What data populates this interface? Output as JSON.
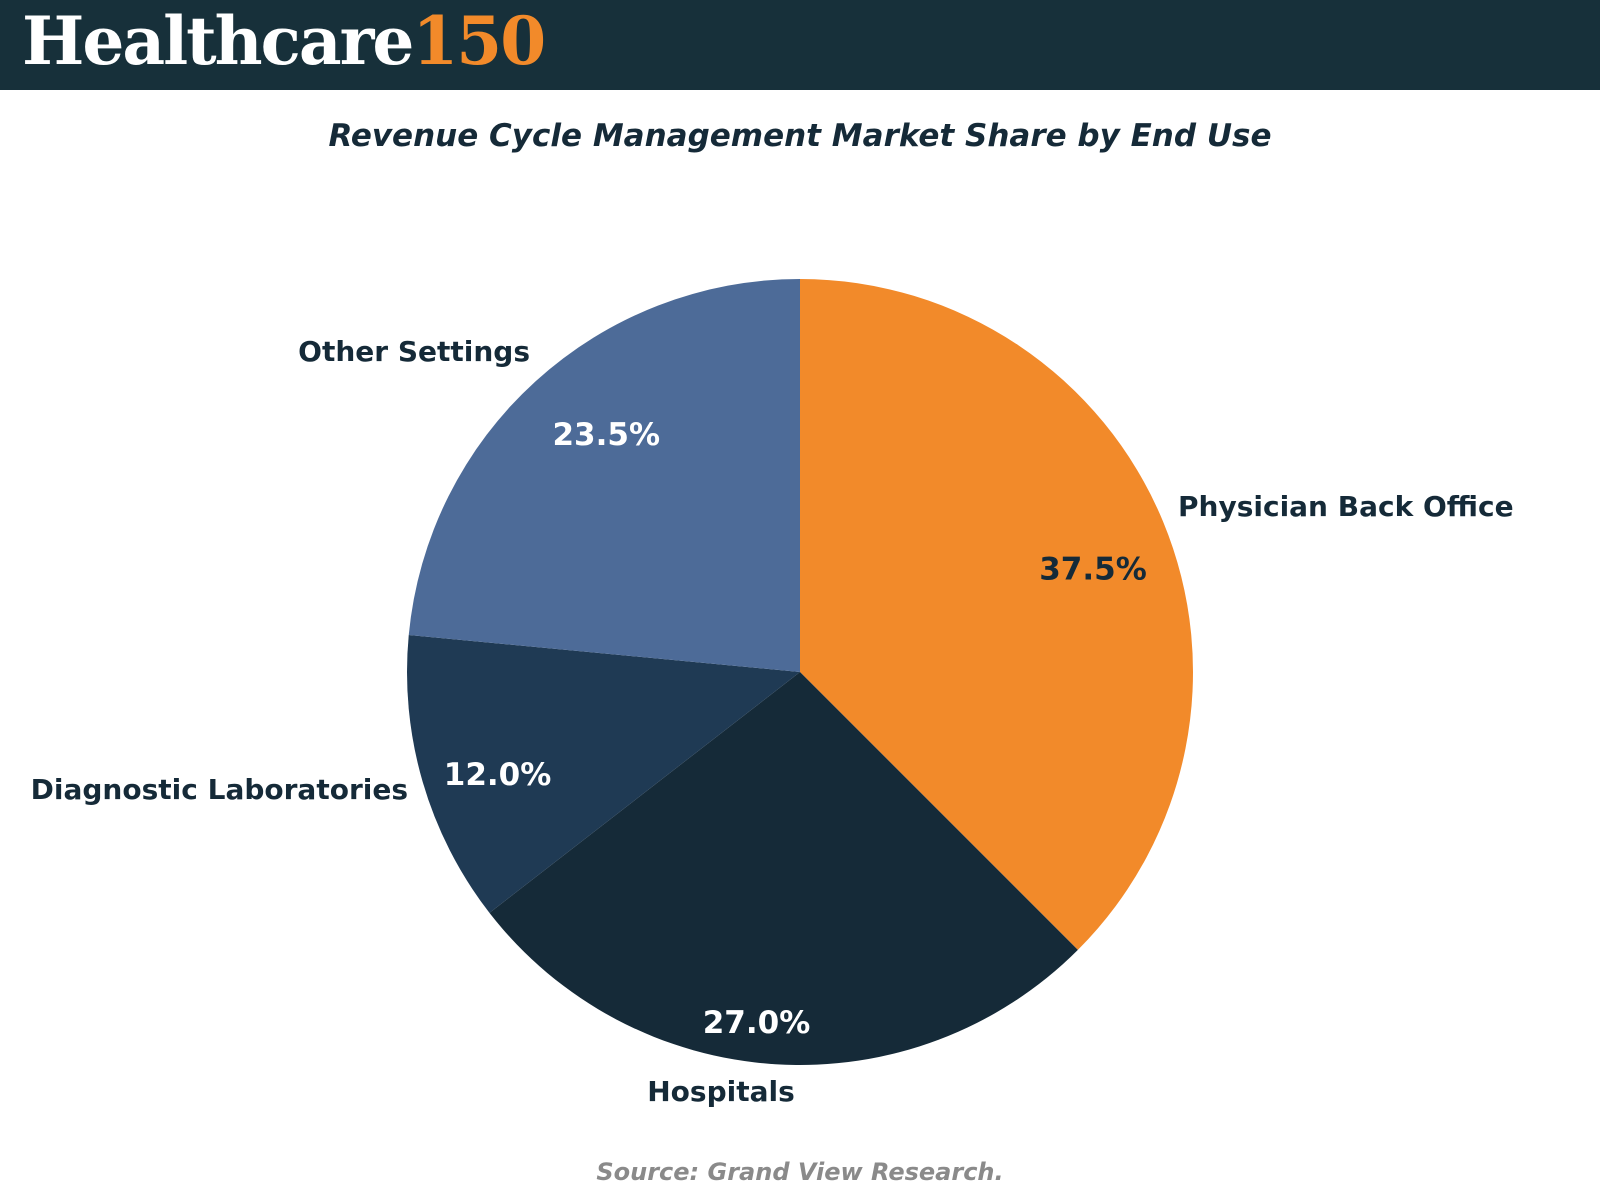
{
  "header": {
    "brand_word": "Healthcare",
    "brand_number": "150",
    "background_color": "#17303a",
    "accent_color": "#f28a2a"
  },
  "chart_data": {
    "type": "pie",
    "title": "Revenue Cycle Management Market Share by End Use",
    "source": "Source: Grand View Research.",
    "slices": [
      {
        "label": "Physician Back Office",
        "value": 37.5,
        "display": "37.5%",
        "color": "#f28a2a"
      },
      {
        "label": "Hospitals",
        "value": 27.0,
        "display": "27.0%",
        "color": "#152a38"
      },
      {
        "label": "Diagnostic Laboratories",
        "value": 12.0,
        "display": "12.0%",
        "color": "#1f3a54"
      },
      {
        "label": "Other Settings",
        "value": 23.5,
        "display": "23.5%",
        "color": "#4d6b98"
      }
    ],
    "start_angle": "12 o'clock",
    "direction": "clockwise"
  }
}
